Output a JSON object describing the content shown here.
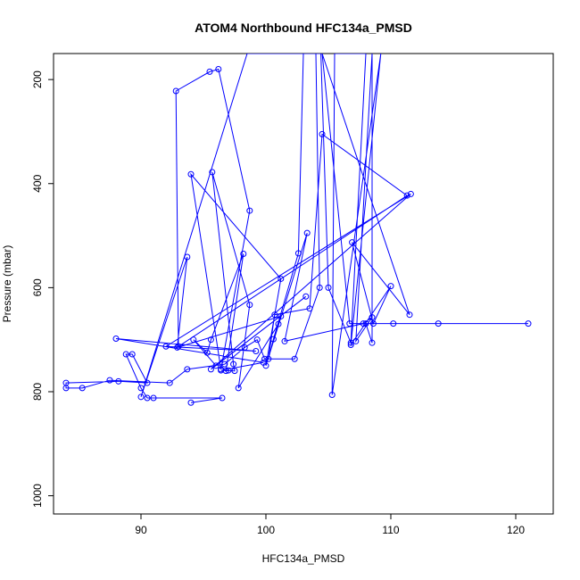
{
  "chart_data": {
    "type": "line",
    "title": "ATOM4 Northbound HFC134a_PMSD",
    "xlabel": "HFC134a_PMSD",
    "ylabel": "Pressure (mbar)",
    "xlim": [
      83,
      123
    ],
    "ylim": [
      1035,
      150
    ],
    "y_reversed": true,
    "grid": false,
    "xticks": [
      90,
      100,
      110,
      120
    ],
    "yticks": [
      200,
      400,
      600,
      800,
      1000
    ],
    "series": [
      {
        "color": "#0000ff",
        "marker": "open-circle",
        "points": [
          [
            94.0,
            821
          ],
          [
            96.5,
            812
          ],
          [
            91.0,
            812
          ],
          [
            90.5,
            812
          ],
          [
            90.0,
            793
          ],
          [
            88.8,
            728
          ],
          [
            89.3,
            728
          ],
          [
            90.5,
            783
          ],
          [
            88.2,
            780
          ],
          [
            84.0,
            783
          ],
          [
            84.0,
            793
          ],
          [
            85.3,
            793
          ],
          [
            87.5,
            778
          ],
          [
            92.3,
            783
          ],
          [
            93.7,
            757
          ],
          [
            96.7,
            747
          ],
          [
            98.3,
            715
          ],
          [
            99.3,
            700
          ],
          [
            99.9,
            737
          ],
          [
            102.3,
            737
          ],
          [
            104.3,
            600
          ],
          [
            104.0,
            150
          ],
          [
            103.0,
            150
          ],
          [
            102.6,
            534
          ],
          [
            100.6,
            699
          ],
          [
            100.2,
            737
          ],
          [
            100.7,
            652
          ],
          [
            103.5,
            640
          ],
          [
            104.5,
            305
          ],
          [
            111.3,
            423
          ],
          [
            93.0,
            713
          ],
          [
            92.8,
            222
          ],
          [
            95.5,
            185
          ],
          [
            96.2,
            180
          ],
          [
            98.7,
            452
          ],
          [
            96.4,
            757
          ],
          [
            94.0,
            382
          ],
          [
            101.2,
            583
          ],
          [
            100.0,
            750
          ],
          [
            103.3,
            495
          ],
          [
            101.5,
            703
          ],
          [
            107.8,
            669
          ],
          [
            108.5,
            657
          ],
          [
            107.2,
            703
          ],
          [
            108.5,
            150
          ],
          [
            108.5,
            706
          ],
          [
            108.0,
            669
          ],
          [
            110.2,
            669
          ],
          [
            113.8,
            669
          ],
          [
            121.0,
            669
          ],
          [
            106.7,
            669
          ],
          [
            104.5,
            150
          ],
          [
            111.5,
            652
          ],
          [
            106.9,
            513
          ],
          [
            108.6,
            669
          ],
          [
            110.0,
            597
          ],
          [
            106.8,
            710
          ],
          [
            109.2,
            150
          ],
          [
            105.3,
            806
          ],
          [
            105.5,
            150
          ],
          [
            108.0,
            150
          ],
          [
            106.8,
            706
          ],
          [
            105.0,
            600
          ],
          [
            104.4,
            150
          ],
          [
            98.5,
            150
          ],
          [
            90.0,
            810
          ],
          [
            93.7,
            541
          ],
          [
            92.9,
            715
          ],
          [
            101.2,
            655
          ],
          [
            101.0,
            670
          ],
          [
            97.8,
            793
          ],
          [
            98.7,
            633
          ],
          [
            95.7,
            378
          ],
          [
            97.4,
            747
          ],
          [
            97.5,
            760
          ],
          [
            96.4,
            759
          ],
          [
            99.8,
            744
          ],
          [
            88.0,
            698
          ],
          [
            99.2,
            722
          ],
          [
            92.0,
            713
          ],
          [
            111.6,
            420
          ],
          [
            95.6,
            757
          ],
          [
            103.2,
            617
          ],
          [
            96.0,
            750
          ],
          [
            94.2,
            700
          ],
          [
            95.3,
            725
          ],
          [
            95.6,
            700
          ],
          [
            98.2,
            535
          ],
          [
            96.8,
            760
          ],
          [
            97.0,
            759
          ]
        ]
      }
    ]
  }
}
